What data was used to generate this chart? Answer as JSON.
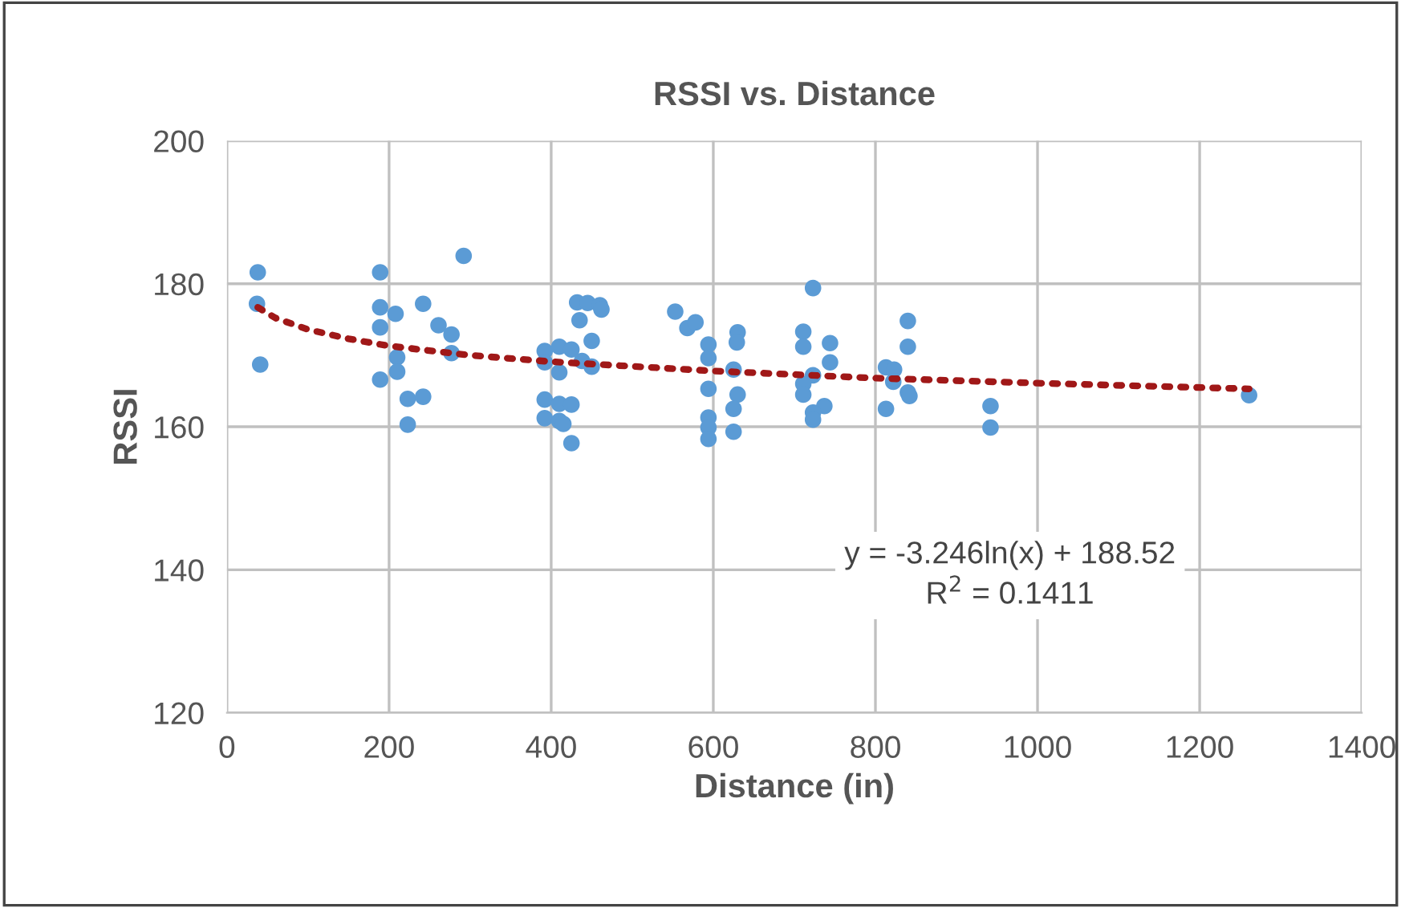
{
  "chart_data": {
    "type": "scatter",
    "title": "RSSI vs. Distance",
    "xlabel": "Distance (in)",
    "ylabel": "RSSI",
    "xlim": [
      0,
      1400
    ],
    "xticks": [
      0,
      200,
      400,
      600,
      800,
      1000,
      1200,
      1400
    ],
    "ylim": [
      120,
      200
    ],
    "yticks": [
      120,
      140,
      160,
      180,
      200
    ],
    "grid": true,
    "legend": false,
    "marker": "circle",
    "annotations": [
      "y = -3.246ln(x) + 188.52",
      "R$^{2}$ = 0.1411"
    ],
    "series": [
      {
        "color": "#5b9bd5",
        "x": [
          38,
          37,
          41,
          189,
          189,
          189,
          208,
          242,
          261,
          277,
          277,
          210,
          210,
          189,
          223,
          242,
          223,
          292,
          392,
          392,
          392,
          392,
          410,
          410,
          410,
          410,
          415,
          425,
          425,
          425,
          432,
          435,
          438,
          445,
          450,
          450,
          460,
          462,
          553,
          568,
          578,
          594,
          594,
          594,
          594,
          594,
          594,
          630,
          629,
          625,
          630,
          625,
          625,
          723,
          711,
          711,
          744,
          744,
          723,
          711,
          711,
          737,
          723,
          723,
          840,
          840,
          813,
          823,
          822,
          840,
          842,
          813,
          942,
          942,
          1261
        ],
        "values": [
          181.6,
          177.2,
          168.7,
          181.6,
          176.7,
          173.9,
          175.8,
          177.2,
          174.2,
          172.9,
          170.3,
          169.7,
          167.7,
          166.6,
          163.9,
          164.2,
          160.3,
          183.9,
          170.6,
          169.0,
          163.8,
          161.2,
          171.2,
          167.6,
          163.2,
          160.8,
          160.4,
          170.8,
          163.1,
          157.7,
          177.4,
          174.9,
          169.2,
          177.3,
          172.0,
          168.4,
          177.0,
          176.4,
          176.1,
          173.8,
          174.6,
          171.5,
          169.6,
          165.3,
          161.3,
          159.9,
          158.3,
          173.2,
          171.8,
          168.0,
          164.5,
          162.5,
          159.3,
          179.4,
          173.3,
          171.2,
          171.7,
          169.0,
          167.2,
          166.0,
          164.5,
          162.9,
          162.0,
          161.0,
          174.8,
          171.2,
          168.3,
          168.0,
          166.3,
          164.8,
          164.3,
          162.5,
          162.9,
          159.9,
          164.4
        ]
      },
      {
        "type": "line",
        "color": "#a01818",
        "line_style": "dotted",
        "marker": "none",
        "x": [
          38,
          60,
          100,
          150,
          200,
          300,
          400,
          600,
          800,
          1000,
          1261
        ],
        "values": [
          176.7,
          175.2,
          173.6,
          172.3,
          171.3,
          170.0,
          169.1,
          167.8,
          166.8,
          166.1,
          165.3
        ]
      }
    ]
  }
}
